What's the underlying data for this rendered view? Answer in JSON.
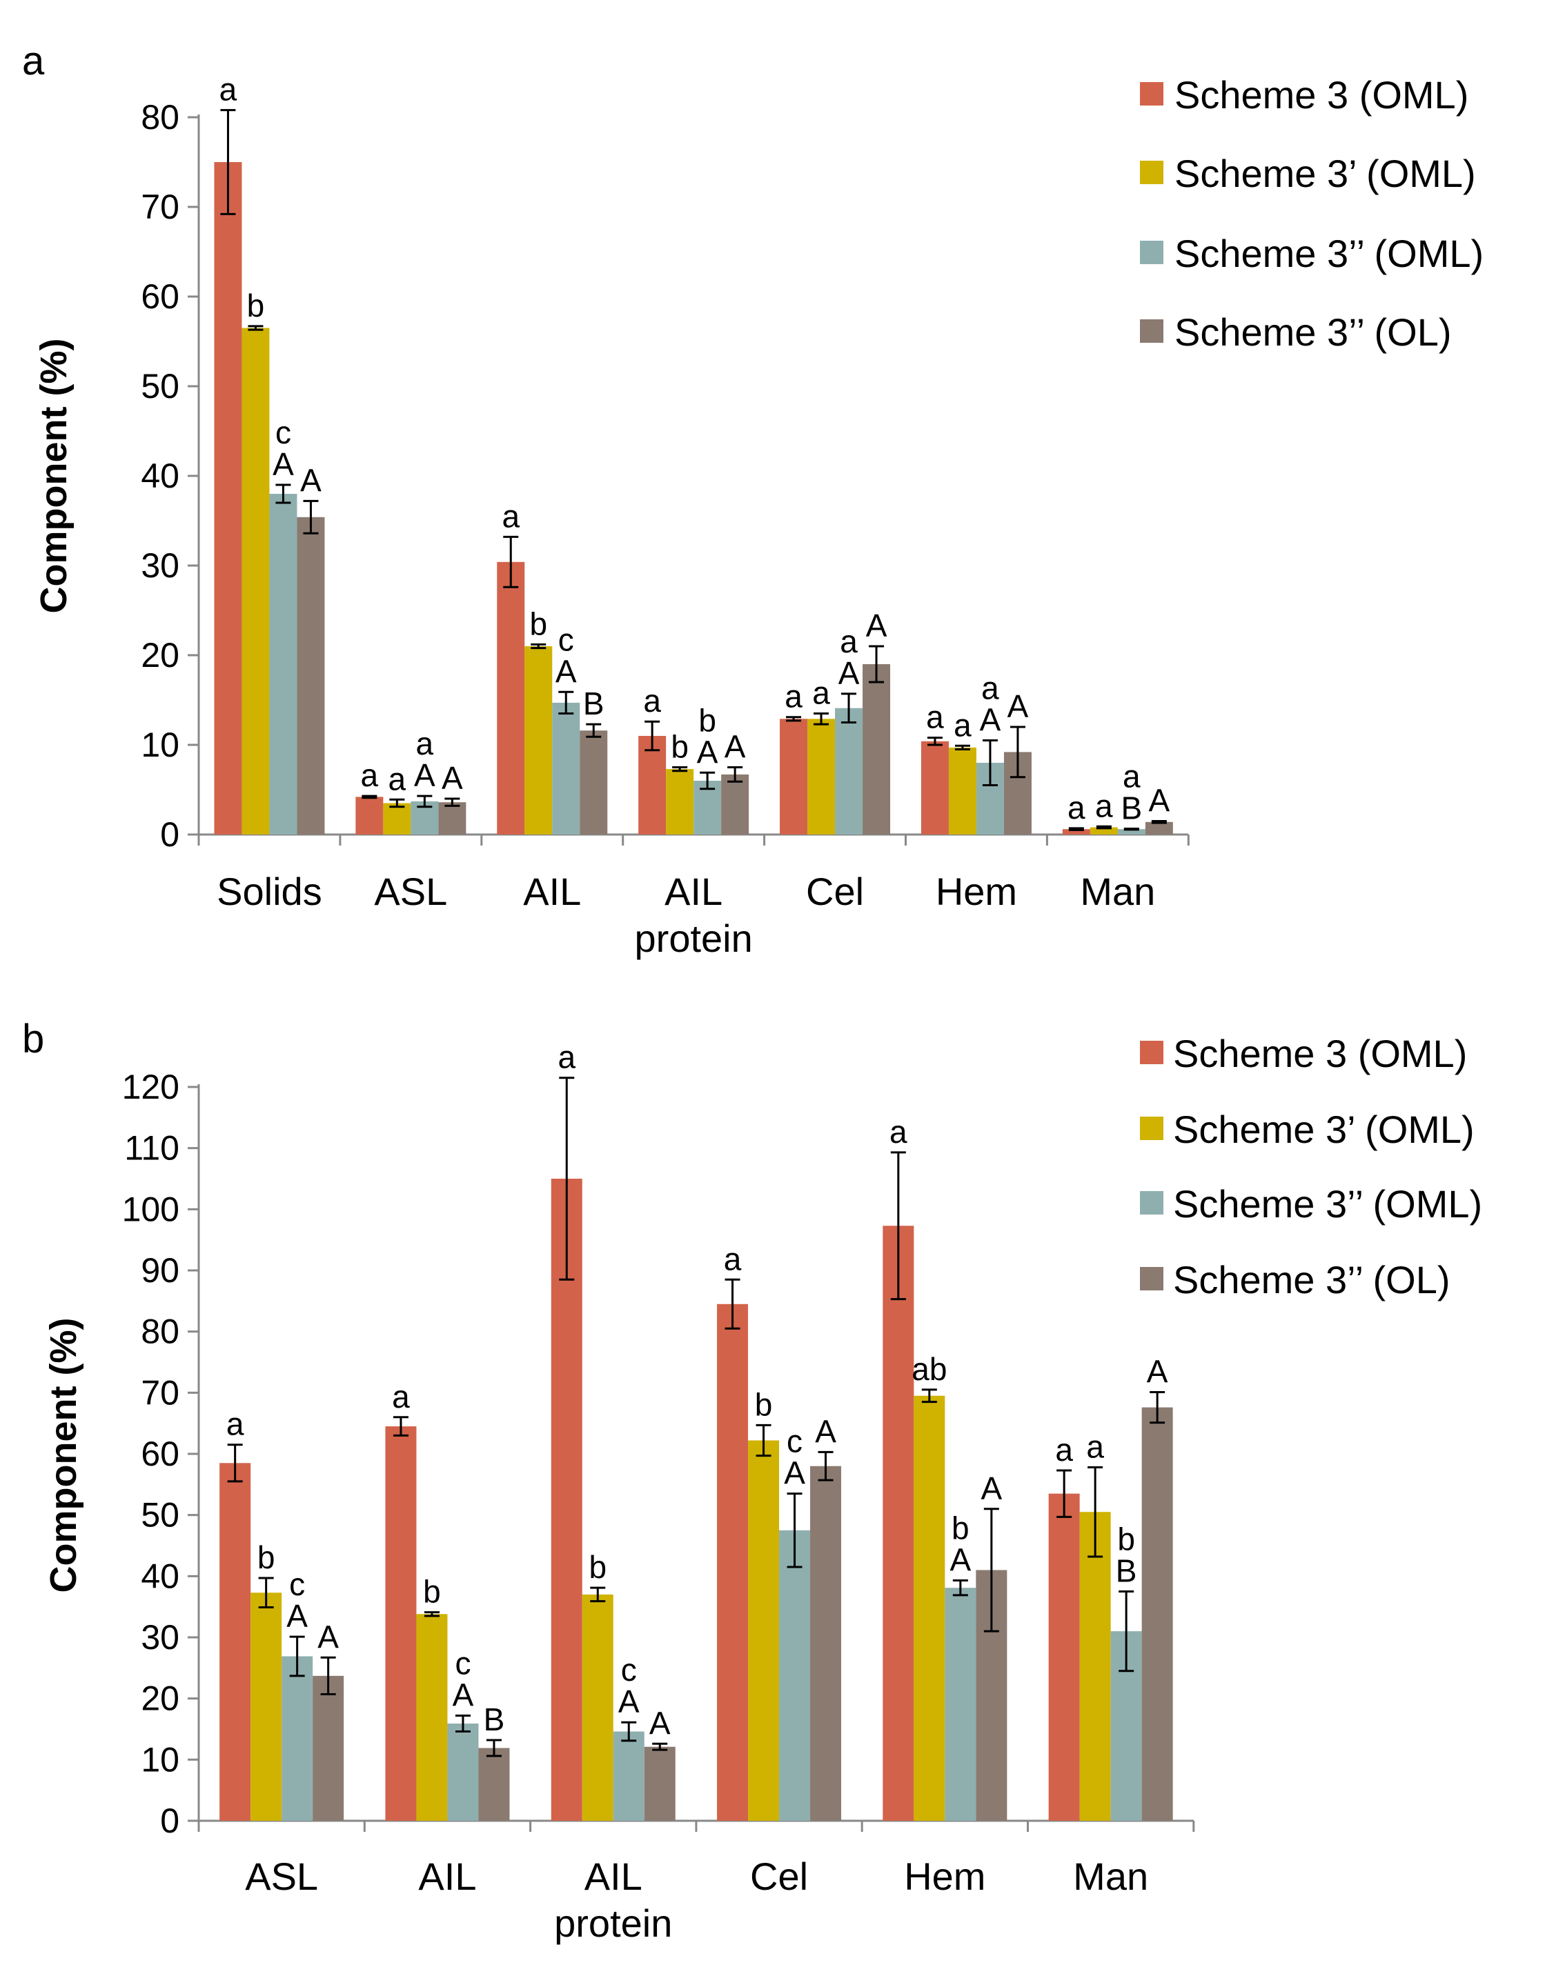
{
  "colors": {
    "s3": "#D2634A",
    "s3p": "#CFB300",
    "s3pp_oml": "#8FAFAF",
    "s3pp_ol": "#8B7A70"
  },
  "chart_data": [
    {
      "panel": "a",
      "type": "bar",
      "ylabel": "Component (%)",
      "ylim": [
        0,
        80
      ],
      "yticks": [
        0,
        10,
        20,
        30,
        40,
        50,
        60,
        70,
        80
      ],
      "legend_position": "top-right",
      "categories": [
        "Solids",
        "ASL",
        "AIL",
        "AIL\nprotein",
        "Cel",
        "Hem",
        "Man"
      ],
      "series": [
        {
          "name": "Scheme 3 (OML)",
          "color": "#D2634A",
          "values": [
            75,
            4.2,
            30.4,
            11,
            12.9,
            10.4,
            0.6
          ],
          "errors": [
            5.8,
            0.1,
            2.8,
            1.6,
            0.2,
            0.4,
            0.1
          ],
          "sig": [
            "a",
            "a",
            "a",
            "a",
            "a",
            "a",
            "a"
          ]
        },
        {
          "name": "Scheme 3’ (OML)",
          "color": "#CFB300",
          "values": [
            56.5,
            3.5,
            21,
            7.3,
            12.9,
            9.7,
            0.8
          ],
          "errors": [
            0.2,
            0.4,
            0.2,
            0.2,
            0.6,
            0.2,
            0.1
          ],
          "sig": [
            "b",
            "a",
            "b",
            "b",
            "a",
            "a",
            "a"
          ]
        },
        {
          "name": "Scheme 3’’  (OML)",
          "color": "#8FAFAF",
          "values": [
            38,
            3.7,
            14.7,
            6,
            14.1,
            8,
            0.6
          ],
          "errors": [
            1,
            0.6,
            1.2,
            0.9,
            1.6,
            2.5,
            0.05
          ],
          "sig": [
            "c\nA",
            "a\nA",
            "c\nA",
            "b\nA",
            "a\nA",
            "a\nA",
            "a\nB"
          ]
        },
        {
          "name": "Scheme 3’’ (OL)",
          "color": "#8B7A70",
          "values": [
            35.4,
            3.6,
            11.6,
            6.7,
            19,
            9.2,
            1.4
          ],
          "errors": [
            1.8,
            0.4,
            0.7,
            0.8,
            2,
            2.8,
            0.1
          ],
          "sig": [
            "A",
            "A",
            "B",
            "A",
            "A",
            "A",
            "A"
          ]
        }
      ]
    },
    {
      "panel": "b",
      "type": "bar",
      "ylabel": "Component  (%)",
      "ylim": [
        0,
        120
      ],
      "yticks": [
        0,
        10,
        20,
        30,
        40,
        50,
        60,
        70,
        80,
        90,
        100,
        110,
        120
      ],
      "legend_position": "top-right",
      "categories": [
        "ASL",
        "AIL",
        "AIL\nprotein",
        "Cel",
        "Hem",
        "Man"
      ],
      "series": [
        {
          "name": "Scheme 3 (OML)",
          "color": "#D2634A",
          "values": [
            58.5,
            64.5,
            105,
            84.5,
            97.3,
            53.5
          ],
          "errors": [
            3,
            1.5,
            16.5,
            4,
            12,
            3.8
          ],
          "sig": [
            "a",
            "a",
            "a",
            "a",
            "a",
            "a"
          ]
        },
        {
          "name": "Scheme 3’ (OML)",
          "color": "#CFB300",
          "values": [
            37.3,
            33.8,
            37,
            62.2,
            69.5,
            50.5
          ],
          "errors": [
            2.4,
            0.3,
            1.1,
            2.5,
            1,
            7.3
          ],
          "sig": [
            "b",
            "b",
            "b",
            "b",
            "ab",
            "a"
          ]
        },
        {
          "name": "Scheme 3’’  (OML)",
          "color": "#8FAFAF",
          "values": [
            26.9,
            15.9,
            14.6,
            47.5,
            38.1,
            31
          ],
          "errors": [
            3.2,
            1.3,
            1.5,
            6,
            1.2,
            6.5
          ],
          "sig": [
            "c\nA",
            "c\nA",
            "c\nA",
            "c\nA",
            "b\nA",
            "b\nB"
          ]
        },
        {
          "name": "Scheme 3’’ (OL)",
          "color": "#8B7A70",
          "values": [
            23.7,
            11.9,
            12.1,
            58,
            41,
            67.6
          ],
          "errors": [
            3,
            1.3,
            0.5,
            2.3,
            10,
            2.5
          ],
          "sig": [
            "A",
            "B",
            "A",
            "A",
            "A",
            "A"
          ]
        }
      ]
    }
  ]
}
